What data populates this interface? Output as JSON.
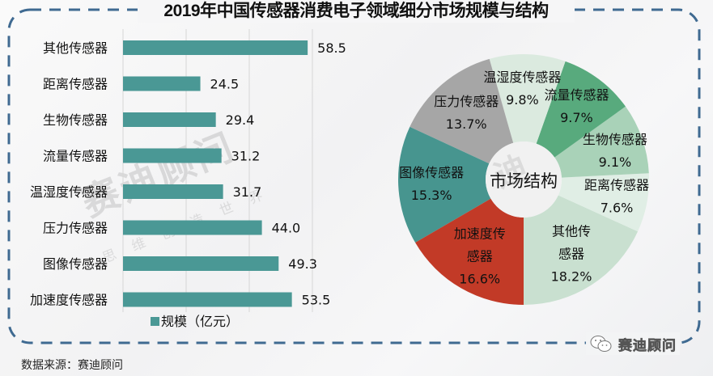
{
  "title": "2019年中国传感器消费电子领域细分市场规模与结构",
  "source": "数据来源：赛迪顾问",
  "wechat_account": "赛迪顾问",
  "watermark": {
    "main": "赛迪顾问",
    "sub": "思维创造世界"
  },
  "colors": {
    "border": "#3f6a91",
    "bar": "#4a9895",
    "grid": "#d6d6d6"
  },
  "chart_data": [
    {
      "type": "bar",
      "orientation": "horizontal",
      "categories": [
        "其他传感器",
        "距离传感器",
        "生物传感器",
        "流量传感器",
        "温湿度传感器",
        "压力传感器",
        "图像传感器",
        "加速度传感器"
      ],
      "series": [
        {
          "name": "规模（亿元）",
          "values": [
            58.5,
            24.5,
            29.4,
            31.2,
            31.7,
            44.0,
            49.3,
            53.5
          ],
          "labels": [
            "58.5",
            "24.5",
            "29.4",
            "31.2",
            "31.7",
            "44.0",
            "49.3",
            "53.5"
          ]
        }
      ],
      "xlim": [
        0,
        60
      ],
      "grid_values": [
        0,
        20,
        40,
        60
      ],
      "grid": true,
      "legend": "bottom"
    },
    {
      "type": "pie",
      "title": "市场结构",
      "donut": true,
      "start": "bottom",
      "slices": [
        {
          "label": "其他传感器",
          "label_lines": [
            "其他传",
            "感器"
          ],
          "value": 18.2,
          "pct": "18.2%",
          "color": "#c9e0d0"
        },
        {
          "label": "距离传感器",
          "label_lines": [
            "距离传感器"
          ],
          "value": 7.6,
          "pct": "7.6%",
          "color": "#e0eee5"
        },
        {
          "label": "生物传感器",
          "label_lines": [
            "生物传感器"
          ],
          "value": 9.1,
          "pct": "9.1%",
          "color": "#a9d2b8"
        },
        {
          "label": "流量传感器",
          "label_lines": [
            "流量传感器"
          ],
          "value": 9.7,
          "pct": "9.7%",
          "color": "#58aa7d"
        },
        {
          "label": "温湿度传感器",
          "label_lines": [
            "温湿度传感器"
          ],
          "value": 9.8,
          "pct": "9.8%",
          "color": "#dbeadf"
        },
        {
          "label": "压力传感器",
          "label_lines": [
            "压力传感器"
          ],
          "value": 13.7,
          "pct": "13.7%",
          "color": "#a6a6a6"
        },
        {
          "label": "图像传感器",
          "label_lines": [
            "图像传感器"
          ],
          "value": 15.3,
          "pct": "15.3%",
          "color": "#47958f"
        },
        {
          "label": "加速度传感器",
          "label_lines": [
            "加速度传",
            "感器"
          ],
          "value": 16.6,
          "pct": "16.6%",
          "color": "#c23a27"
        }
      ]
    }
  ]
}
